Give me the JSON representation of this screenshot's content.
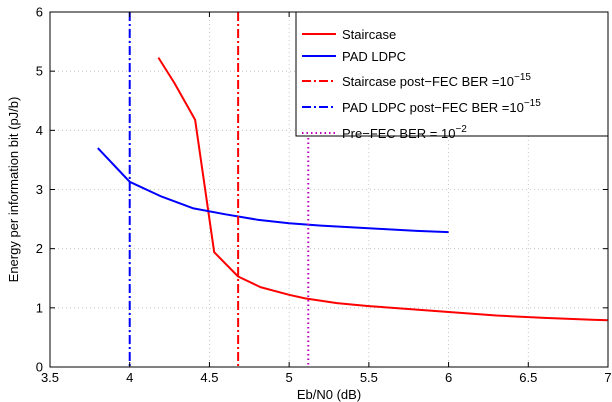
{
  "chart_data": {
    "type": "line",
    "xlabel": "Eb/N0 (dB)",
    "ylabel": "Energy per information bit (pJ/b)",
    "xlim": [
      3.5,
      7
    ],
    "ylim": [
      0,
      6
    ],
    "xticks": [
      3.5,
      4,
      4.5,
      5,
      5.5,
      6,
      6.5,
      7
    ],
    "xtick_labels": [
      "3.5",
      "4",
      "4.5",
      "5",
      "5.5",
      "6",
      "6.5",
      "7"
    ],
    "yticks": [
      0,
      1,
      2,
      3,
      4,
      5,
      6
    ],
    "ytick_labels": [
      "0",
      "1",
      "2",
      "3",
      "4",
      "5",
      "6"
    ],
    "grid": true,
    "legend_position": "top-right",
    "series": [
      {
        "name": "Staircase",
        "color": "#ff0000",
        "style": "solid",
        "x": [
          4.18,
          4.28,
          4.41,
          4.53,
          4.68,
          4.82,
          5.0,
          5.1,
          5.3,
          5.5,
          5.8,
          6.0,
          6.3,
          6.6,
          6.9,
          7.0
        ],
        "y": [
          5.23,
          4.8,
          4.18,
          1.94,
          1.53,
          1.35,
          1.22,
          1.16,
          1.08,
          1.03,
          0.97,
          0.93,
          0.87,
          0.83,
          0.8,
          0.79
        ]
      },
      {
        "name": "PAD LDPC",
        "color": "#0000ff",
        "style": "solid",
        "x": [
          3.8,
          4.0,
          4.2,
          4.4,
          4.6,
          4.8,
          5.0,
          5.2,
          5.4,
          5.6,
          5.8,
          6.0
        ],
        "y": [
          3.7,
          3.13,
          2.88,
          2.68,
          2.58,
          2.49,
          2.43,
          2.39,
          2.36,
          2.33,
          2.3,
          2.28
        ]
      }
    ],
    "vertical_lines": [
      {
        "label_main": "Staircase post−FEC BER =10",
        "label_sup": "−15",
        "x": 4.68,
        "color": "#ff0000",
        "style": "dashdot"
      },
      {
        "label_main": "PAD LDPC post−FEC BER =10",
        "label_sup": "−15",
        "x": 4.0,
        "color": "#0000ff",
        "style": "dashdot"
      },
      {
        "label_main": "Pre−FEC BER = 10",
        "label_sup": "−2",
        "x": 5.12,
        "color": "#bf00bf",
        "style": "dotted"
      }
    ]
  }
}
